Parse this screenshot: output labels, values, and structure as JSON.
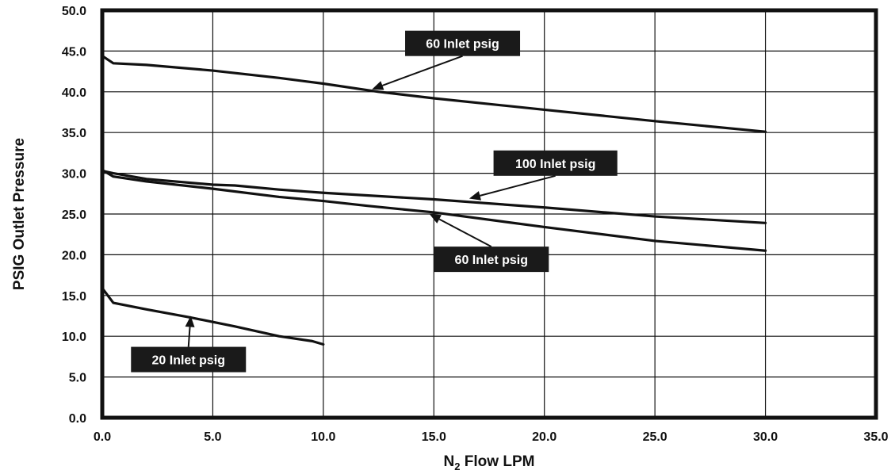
{
  "chart_data": {
    "type": "line",
    "xlabel_main": "N",
    "xlabel_sub": "2",
    "xlabel_rest": " Flow LPM",
    "ylabel": "PSIG Outlet Pressure",
    "xlim": [
      0,
      35
    ],
    "ylim": [
      0,
      50
    ],
    "grid": true,
    "x_ticks": [
      "0.0",
      "5.0",
      "10.0",
      "15.0",
      "20.0",
      "25.0",
      "30.0",
      "35.0"
    ],
    "y_ticks": [
      "0.0",
      "5.0",
      "10.0",
      "15.0",
      "20.0",
      "25.0",
      "30.0",
      "35.0",
      "40.0",
      "45.0",
      "50.0"
    ],
    "line_color": "#111111",
    "series": [
      {
        "name": "60 Inlet psig",
        "x": [
          0,
          0.5,
          2,
          5,
          8,
          10,
          12.5,
          15,
          20,
          25,
          30
        ],
        "y": [
          44.4,
          43.5,
          43.3,
          42.6,
          41.7,
          41.0,
          40.0,
          39.2,
          37.8,
          36.4,
          35.1
        ]
      },
      {
        "name": "100 Inlet psig",
        "x": [
          0,
          0.5,
          2,
          5,
          6,
          8,
          10,
          15,
          20,
          25,
          30
        ],
        "y": [
          30.3,
          30.0,
          29.3,
          28.6,
          28.5,
          28.0,
          27.6,
          26.8,
          25.8,
          24.7,
          23.9
        ]
      },
      {
        "name": "60 Inlet psig",
        "x": [
          0,
          0.5,
          2,
          5,
          8,
          10,
          12,
          15,
          20,
          25,
          30
        ],
        "y": [
          30.4,
          29.6,
          29.0,
          28.1,
          27.1,
          26.6,
          26.0,
          25.2,
          23.4,
          21.7,
          20.5
        ]
      },
      {
        "name": "20 Inlet psig",
        "x": [
          0,
          0.5,
          2,
          4,
          6,
          8,
          9.5,
          10
        ],
        "y": [
          15.9,
          14.1,
          13.3,
          12.3,
          11.2,
          10.0,
          9.4,
          9.0
        ]
      }
    ],
    "annotations": [
      {
        "text": "60 Inlet psig",
        "box_x": 13.7,
        "box_y": 47.5,
        "box_w": 5.2,
        "arrow_to": [
          12.2,
          40.3
        ]
      },
      {
        "text": "100 Inlet psig",
        "box_x": 17.7,
        "box_y": 32.8,
        "box_w": 5.6,
        "arrow_to": [
          16.6,
          26.9
        ]
      },
      {
        "text": "60 Inlet psig",
        "box_x": 15.0,
        "box_y": 21.0,
        "box_w": 5.2,
        "arrow_to": [
          14.8,
          25.0
        ]
      },
      {
        "text": "20 Inlet psig",
        "box_x": 1.3,
        "box_y": 8.7,
        "box_w": 5.2,
        "arrow_to": [
          4.0,
          12.5
        ]
      }
    ]
  }
}
